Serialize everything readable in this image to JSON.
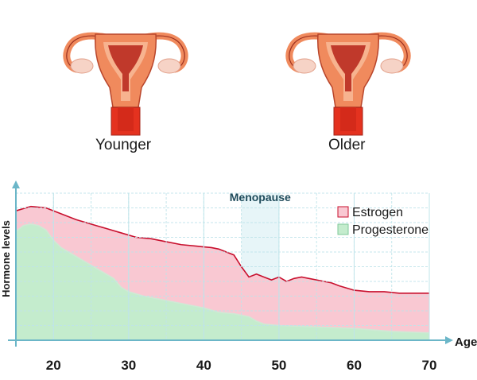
{
  "illustrations": {
    "left_label": "Younger",
    "right_label": "Older",
    "icon": "uterus-icon"
  },
  "colors": {
    "estrogen_fill": "#f9c8d2",
    "estrogen_line": "#c8102e",
    "progesterone_fill": "#c4eccd",
    "progesterone_line": "#cfe9d5",
    "grid": "#bfe4ea",
    "axis": "#6bb6c8",
    "menopause_band": "#e7f5f8",
    "uterus_outer": "#f08a5d",
    "uterus_inner": "#c0392b"
  },
  "chart_data": {
    "type": "area",
    "title": "",
    "xlabel": "Age",
    "ylabel": "Hormone levels",
    "x_ticks": [
      20,
      30,
      40,
      50,
      60,
      70
    ],
    "xlim": [
      15,
      70
    ],
    "ylim": [
      0,
      100
    ],
    "grid": true,
    "legend_position": "top-right",
    "annotation": {
      "text": "Menopause",
      "x_range": [
        45,
        50
      ]
    },
    "series": [
      {
        "name": "Estrogen",
        "x": [
          15,
          17,
          19,
          21,
          23,
          25,
          27,
          29,
          31,
          33,
          35,
          37,
          39,
          41,
          42,
          43,
          44,
          45,
          46,
          47,
          48,
          49,
          50,
          51,
          52,
          53,
          54,
          55,
          56,
          57,
          58,
          60,
          62,
          64,
          66,
          68,
          70
        ],
        "values": [
          88,
          91,
          90,
          86,
          82,
          79,
          76,
          73,
          70,
          69,
          67,
          65,
          64,
          63,
          62,
          60,
          58,
          50,
          43,
          45,
          43,
          41,
          43,
          40,
          42,
          43,
          42,
          41,
          40,
          39,
          37,
          34,
          33,
          33,
          32,
          32,
          32
        ]
      },
      {
        "name": "Progesterone",
        "x": [
          15,
          16,
          17,
          18,
          19,
          20,
          21,
          22,
          24,
          26,
          28,
          29,
          30,
          32,
          34,
          36,
          38,
          40,
          42,
          44,
          46,
          47,
          48,
          50,
          55,
          60,
          65,
          70
        ],
        "values": [
          74,
          78,
          79,
          78,
          75,
          68,
          63,
          60,
          54,
          48,
          42,
          36,
          33,
          30,
          28,
          26,
          24,
          22,
          19,
          18,
          16,
          13,
          11,
          10,
          9,
          8,
          6,
          5
        ]
      }
    ]
  }
}
